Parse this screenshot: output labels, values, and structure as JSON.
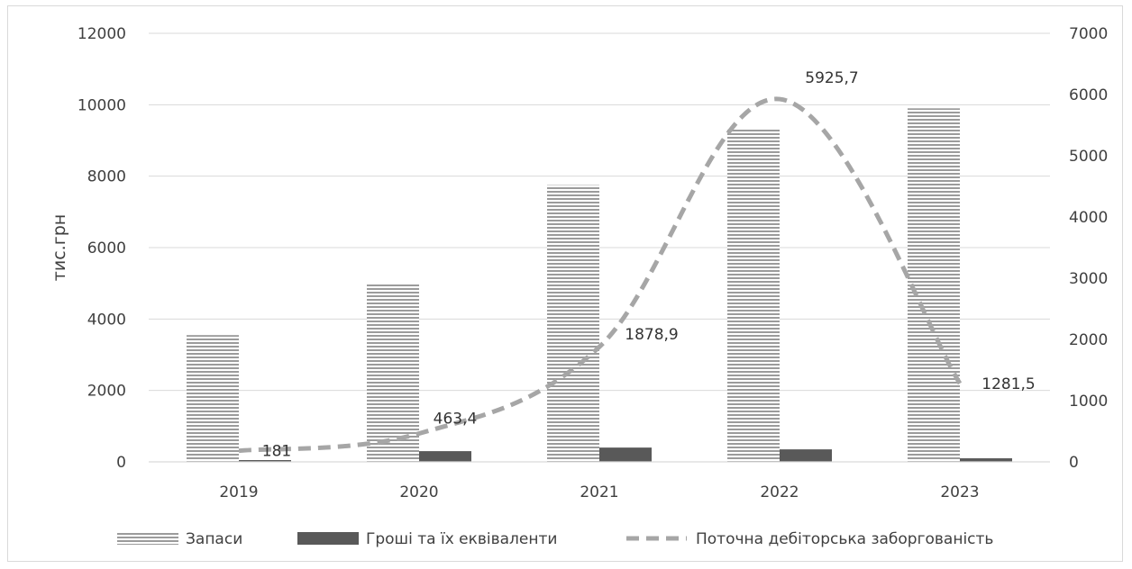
{
  "chart_data": {
    "type": "bar",
    "categories": [
      "2019",
      "2020",
      "2021",
      "2022",
      "2023"
    ],
    "series": [
      {
        "name": "Запаси",
        "type": "bar",
        "axis": "left",
        "pattern": "horizontal-stripes",
        "color": "#9b9b9b",
        "values": [
          3550,
          5000,
          7750,
          9350,
          9900
        ]
      },
      {
        "name": "Гроші та їх еквіваленти",
        "type": "bar",
        "axis": "left",
        "color": "#595959",
        "values": [
          50,
          300,
          400,
          350,
          100
        ]
      },
      {
        "name": "Поточна дебіторська заборгованість",
        "type": "line",
        "style": "dashed",
        "axis": "right",
        "color": "#a6a6a6",
        "values": [
          181,
          463.4,
          1878.9,
          5925.7,
          1281.5
        ],
        "labels": [
          "181",
          "463,4",
          "1878,9",
          "5925,7",
          "1281,5"
        ]
      }
    ],
    "ylabel": "тис.грн",
    "ylim": [
      0,
      12000
    ],
    "yticks": [
      "0",
      "2000",
      "4000",
      "6000",
      "8000",
      "10000",
      "12000"
    ],
    "y2lim": [
      0,
      7000
    ],
    "y2ticks": [
      "0",
      "1000",
      "2000",
      "3000",
      "4000",
      "5000",
      "6000",
      "7000"
    ],
    "grid": true,
    "legend_position": "bottom"
  }
}
